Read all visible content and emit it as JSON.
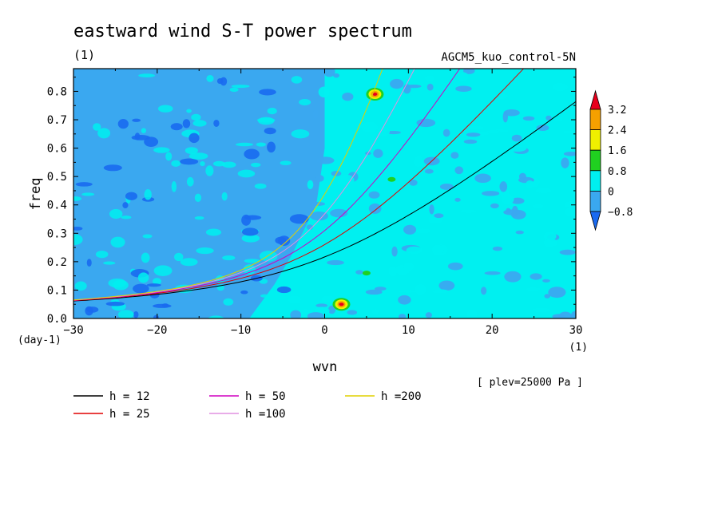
{
  "chart_data": {
    "type": "heatmap",
    "title": "eastward wind S-T power spectrum",
    "subtitle": "(1)",
    "experiment": "AGCM5_kuo_control-5N",
    "xlabel": "wvn",
    "xunit": "(1)",
    "ylabel": "freq",
    "yunit": "(day-1)",
    "xlim": [
      -30,
      30
    ],
    "ylim": [
      0,
      0.88
    ],
    "xticks": [
      -30,
      -20,
      -10,
      0,
      10,
      20,
      30
    ],
    "yticks": [
      0.0,
      0.1,
      0.2,
      0.3,
      0.4,
      0.5,
      0.6,
      0.7,
      0.8
    ],
    "xtick_labels": [
      "−30",
      "−20",
      "−10",
      "0",
      "10",
      "20",
      "30"
    ],
    "ytick_labels": [
      "0.0",
      "0.1",
      "0.2",
      "0.3",
      "0.4",
      "0.5",
      "0.6",
      "0.7",
      "0.8"
    ],
    "annotation": "[ plev=25000 Pa ]",
    "colorbar": {
      "levels": [
        "3.2",
        "2.4",
        "1.6",
        "0.8",
        "0",
        "−0.8"
      ],
      "level_values": [
        3.2,
        2.4,
        1.6,
        0.8,
        0,
        -0.8
      ],
      "colors": [
        "#e8001c",
        "#f5a000",
        "#f0f000",
        "#20d020",
        "#00f0f0",
        "#3aa8f0",
        "#1a6af0"
      ]
    },
    "shading": {
      "left_region_color": "#3aa8f0",
      "right_region_color": "#00f0f0",
      "dark_spot_color": "#1a6af0",
      "hotspots": [
        {
          "x": 2,
          "y": 0.05,
          "peak": 3.2
        },
        {
          "x": 6,
          "y": 0.79,
          "peak": 3.2
        },
        {
          "x": 5,
          "y": 0.16,
          "peak": 0.8
        },
        {
          "x": 8,
          "y": 0.49,
          "peak": 0.8
        }
      ]
    },
    "series": [
      {
        "name": "h = 12",
        "h": 12,
        "color": "#000000"
      },
      {
        "name": "h = 25",
        "h": 25,
        "color": "#e00000"
      },
      {
        "name": "h = 50",
        "h": 50,
        "color": "#d000c0"
      },
      {
        "name": "h =100",
        "h": 100,
        "color": "#e090e0"
      },
      {
        "name": "h =200",
        "h": 200,
        "color": "#e0d000"
      }
    ]
  }
}
